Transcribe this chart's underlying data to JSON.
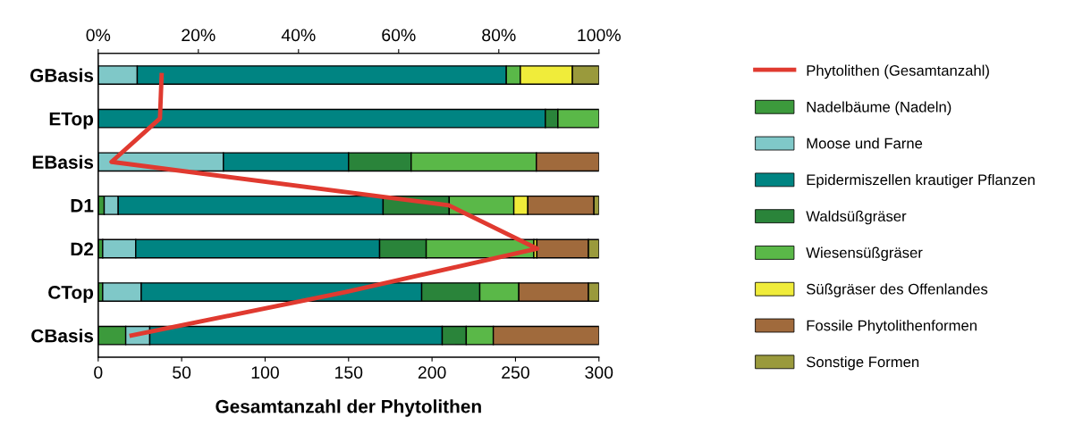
{
  "chart_data": {
    "type": "bar",
    "orientation": "horizontal",
    "stacked": true,
    "categories": [
      "GBasis",
      "ETop",
      "EBasis",
      "D1",
      "D2",
      "CTop",
      "CBasis"
    ],
    "xlabel": "Gesamtanzahl der Phytolithen",
    "xlim": [
      0,
      300
    ],
    "xticks": [
      0,
      50,
      100,
      150,
      200,
      250,
      300
    ],
    "x2lim": [
      0,
      100
    ],
    "x2ticks": [
      {
        "value": 0,
        "label": "0%"
      },
      {
        "value": 20,
        "label": "20%"
      },
      {
        "value": 40,
        "label": "40%"
      },
      {
        "value": 60,
        "label": "60%"
      },
      {
        "value": 80,
        "label": "80%"
      },
      {
        "value": 100,
        "label": "100%"
      }
    ],
    "legend": "right",
    "grid": false,
    "series": [
      {
        "name": "Phytolithen (Gesamtanzahl)",
        "type": "line",
        "color": "#e03a30",
        "values": [
          38,
          37,
          8,
          210,
          263,
          148,
          20
        ]
      },
      {
        "name": "Nadelbäume (Nadeln)",
        "axis": "x2",
        "color": "#3c9a3c",
        "values": [
          null,
          null,
          null,
          1.2,
          0.9,
          0.9,
          5.5
        ]
      },
      {
        "name": "Moose und Farne",
        "axis": "x2",
        "color": "#7fc8c8",
        "values": [
          7.8,
          null,
          25,
          2.8,
          6.6,
          7.7,
          4.8
        ]
      },
      {
        "name": "Epidermiszellen krautiger Pflanzen",
        "axis": "x2",
        "color": "#008482",
        "values": [
          73.7,
          89.3,
          25,
          52.9,
          48.7,
          56.0,
          58.4
        ]
      },
      {
        "name": "Waldsüßgräser",
        "axis": "x2",
        "color": "#2a843a",
        "values": [
          null,
          2.5,
          12.5,
          13.2,
          9.3,
          11.6,
          4.8
        ]
      },
      {
        "name": "Wiesensüßgräser",
        "axis": "x2",
        "color": "#5ab848",
        "values": [
          2.8,
          8.2,
          25,
          12.9,
          21.5,
          7.8,
          5.4
        ]
      },
      {
        "name": "Süßgräser des Offenlandes",
        "axis": "x2",
        "color": "#f0ec3a",
        "values": [
          10.4,
          null,
          null,
          2.8,
          0.6,
          null,
          null
        ]
      },
      {
        "name": "Fossile Phytolithenformen",
        "axis": "x2",
        "color": "#a06a3c",
        "values": [
          null,
          null,
          12.5,
          13.2,
          10.3,
          13.9,
          21.1
        ]
      },
      {
        "name": "Sonstige Formen",
        "axis": "x2",
        "color": "#9a9a3c",
        "values": [
          5.3,
          null,
          null,
          1.0,
          2.1,
          2.1,
          null
        ]
      }
    ]
  }
}
